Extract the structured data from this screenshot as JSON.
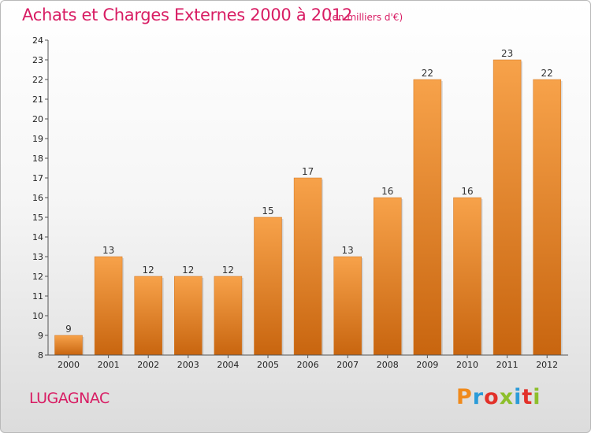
{
  "header": {
    "title": "Achats et Charges Externes 2000 à 2012",
    "subtitle": "(en milliers d'€)"
  },
  "footer": {
    "town": "LUGAGNAC",
    "logo": "Proxiti"
  },
  "colors": {
    "accent": "#d81c63",
    "bar_light": "#f7a24a",
    "bar_dark": "#c8650f"
  },
  "chart_data": {
    "type": "bar",
    "categories": [
      "2000",
      "2001",
      "2002",
      "2003",
      "2004",
      "2005",
      "2006",
      "2007",
      "2008",
      "2009",
      "2010",
      "2011",
      "2012"
    ],
    "values": [
      9,
      13,
      12,
      12,
      12,
      15,
      17,
      13,
      16,
      22,
      16,
      23,
      22
    ],
    "title": "Achats et Charges Externes 2000 à 2012",
    "subtitle": "(en milliers d'€)",
    "xlabel": "",
    "ylabel": "",
    "ylim": [
      8,
      24
    ],
    "yticks": [
      8,
      9,
      10,
      11,
      12,
      13,
      14,
      15,
      16,
      17,
      18,
      19,
      20,
      21,
      22,
      23,
      24
    ],
    "grid": false,
    "data_labels": true
  }
}
